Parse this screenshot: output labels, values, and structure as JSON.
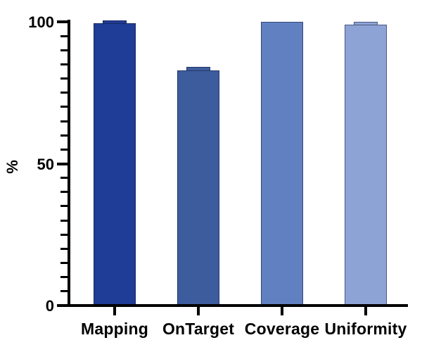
{
  "chart_data": {
    "type": "bar",
    "title": "",
    "xlabel": "",
    "ylabel": "%",
    "categories": [
      "Mapping",
      "OnTarget",
      "Coverage",
      "Uniformity"
    ],
    "values": [
      99.5,
      83,
      100,
      99
    ],
    "errors": [
      0.4,
      0.6,
      0,
      0.6
    ],
    "bar_colors": [
      "#1F3C96",
      "#3D5C9E",
      "#6080C1",
      "#8EA3D5"
    ],
    "ylim": [
      0,
      100
    ],
    "yticks_major": [
      0,
      50,
      100
    ],
    "ytick_minor_step": 5,
    "grid": false,
    "legend": false,
    "colors": {
      "axis": "#000000",
      "text": "#000000",
      "background": "#ffffff",
      "bar_border": "rgba(17,27,58,0.55)"
    }
  }
}
